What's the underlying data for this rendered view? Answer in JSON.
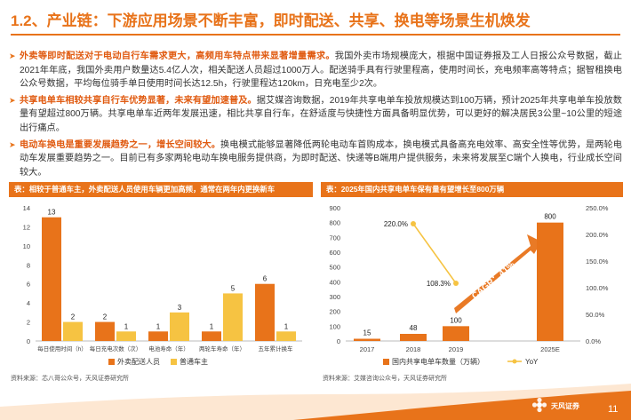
{
  "page": {
    "title": "1.2、产业链：下游应用场景不断丰富，即时配送、共享、换电等场景生机焕发",
    "page_number": "11",
    "logo_text": "天风证券"
  },
  "bullets": [
    {
      "highlight": "外卖等即时配送对于电动自行车需求更大，高频用车特点带来显著增量需求。",
      "body": "我国外卖市场规模庞大，根据中国证券报及工人日报公众号数据，截止2021年年底，我国外卖用户数量达5.4亿人次，相关配送人员超过1000万人。配送骑手具有行驶里程高，使用时间长，充电频率高等特点；据智租换电公众号数据，平均每位骑手单日使用时间长达12.5h，行驶里程达120km，日充电至少2次。"
    },
    {
      "highlight": "共享电单车相较共享自行车优势显著，未来有望加速普及。",
      "body": "据艾媒咨询数据，2019年共享电单车投放规模达到100万辆，预计2025年共享电单车投放数量有望超过800万辆。共享电单车近两年发展迅速，相比共享自行车，在舒适度与快捷性方面具备明显优势，可以更好的解决居民3公里~10公里的短途出行痛点。"
    },
    {
      "highlight": "电动车换电是重要发展趋势之一，增长空间较大。",
      "body": "换电模式能够显著降低两轮电动车首购成本，换电模式具备高充电效率、高安全性等优势，是两轮电动车发展重要趋势之一。目前已有多家两轮电动车换电服务提供商，为即时配送、快递等B端用户提供服务，未来将发展至C端个人换电，行业成长空间较大。"
    }
  ],
  "chart_left_header": "表：相较于普通车主，外卖配送人员使用车辆更加高频，通常在两年内更换新车",
  "chart_left_source": "资料来源：芯八哥公众号，天风证券研究所",
  "chart_right_header": "表：2025年国内共享电单车保有量有望增长至800万辆",
  "chart_right_source": "资料来源：艾媒咨询公众号，天风证券研究所",
  "chart_data": [
    {
      "type": "bar",
      "categories": [
        "每日使用时间（h）",
        "每日充电次数（次）",
        "电池寿命（年）",
        "两轮车寿命（年）",
        "五年累计换车"
      ],
      "series": [
        {
          "name": "外卖配送人员",
          "values": [
            13,
            2,
            1,
            1,
            6
          ],
          "color": "#e8731a"
        },
        {
          "name": "普通车主",
          "values": [
            2,
            1,
            3,
            5,
            1
          ],
          "color": "#f6c342"
        }
      ],
      "ylim": [
        0,
        14
      ],
      "yticks": [
        0,
        2,
        4,
        6,
        8,
        10,
        12,
        14
      ],
      "legend": "bottom"
    },
    {
      "type": "bar",
      "categories": [
        "2017",
        "2018",
        "2019",
        "2025E"
      ],
      "series": [
        {
          "name": "国内共享电单车数量（万辆）",
          "values": [
            15,
            48,
            100,
            800
          ],
          "color": "#e8731a"
        },
        {
          "name": "YoY",
          "values": [
            null,
            220.0,
            108.3,
            null
          ],
          "color": "#f6c342",
          "axis": "right"
        }
      ],
      "y_ticks": [
        0,
        100,
        200,
        300,
        400,
        500,
        600,
        700,
        800,
        900
      ],
      "y2_ticks": [
        "0.0%",
        "50.0%",
        "100.0%",
        "150.0%",
        "200.0%",
        "250.0%"
      ],
      "data_labels": [
        "15",
        "48",
        "100",
        "800"
      ],
      "yoy_labels": [
        "220.0%",
        "108.3%"
      ],
      "annotation": "CAGR：41%",
      "legend": "bottom"
    }
  ]
}
